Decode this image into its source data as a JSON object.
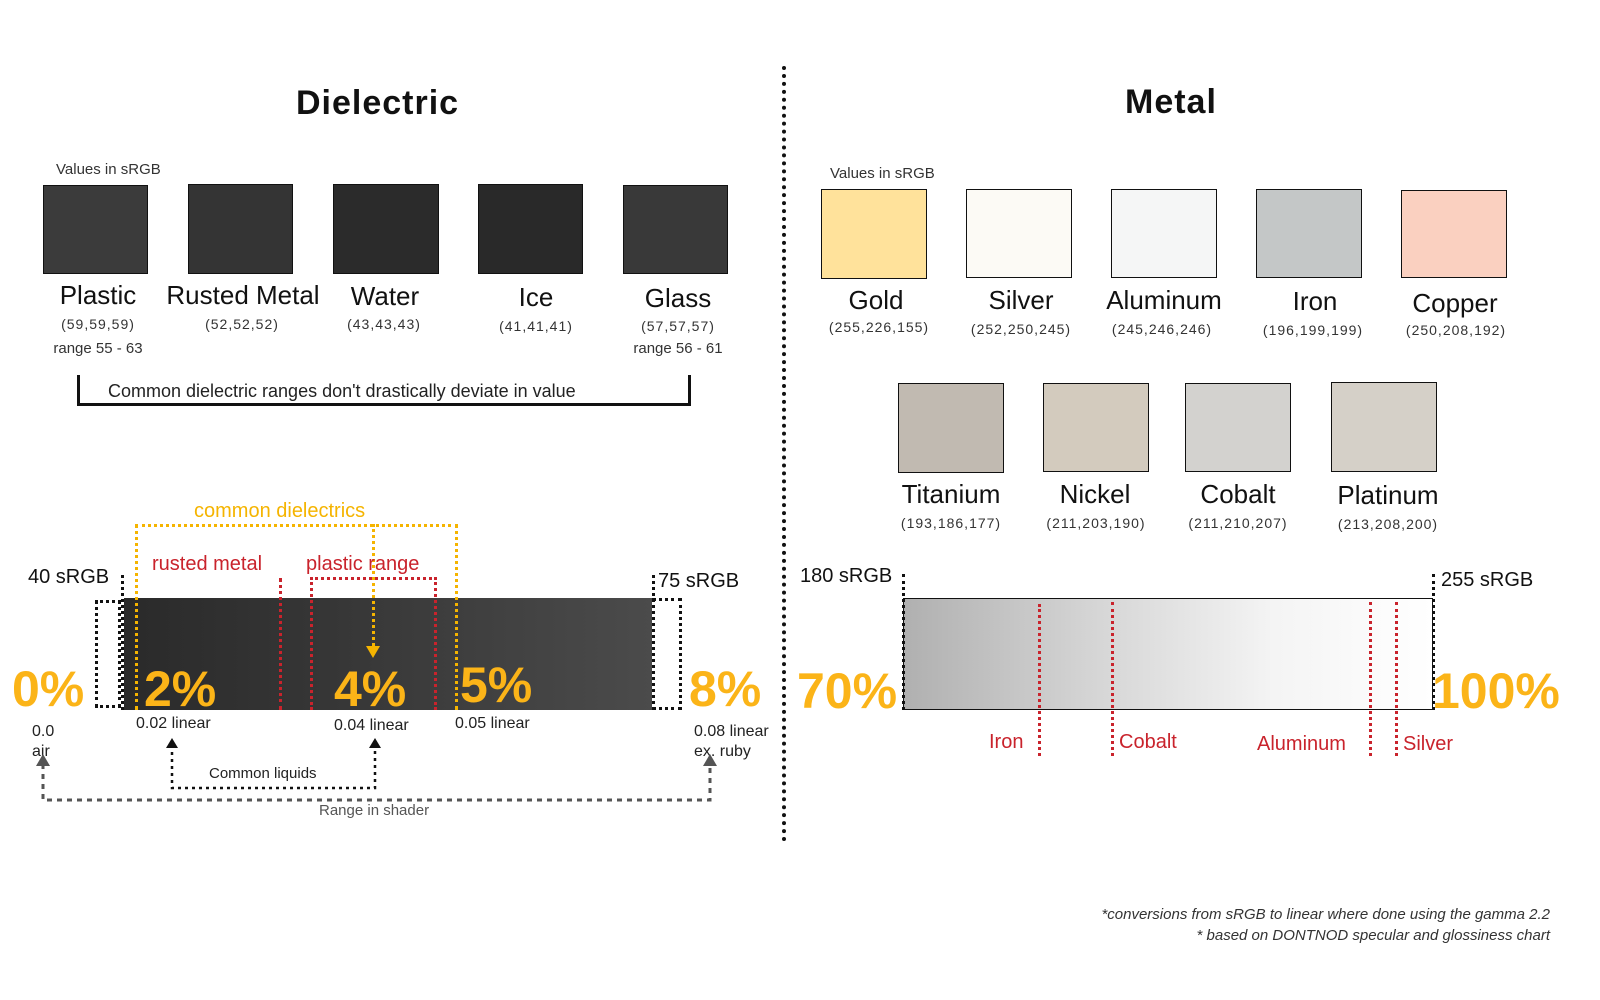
{
  "colors": {
    "accent_yellow": "#fbb418",
    "accent_red": "#c9232c",
    "ink": "#111111"
  },
  "dielectric": {
    "title": "Dielectric",
    "values_note": "Values in sRGB",
    "materials": [
      {
        "name": "Plastic",
        "value": "(59,59,59)",
        "range": "range 55 - 63",
        "color": "#3b3b3b"
      },
      {
        "name": "Rusted Metal",
        "value": "(52,52,52)",
        "range": "",
        "color": "#343434"
      },
      {
        "name": "Water",
        "value": "(43,43,43)",
        "range": "",
        "color": "#2b2b2b"
      },
      {
        "name": "Ice",
        "value": "(41,41,41)",
        "range": "",
        "color": "#292929"
      },
      {
        "name": "Glass",
        "value": "(57,57,57)",
        "range": "range 56 - 61",
        "color": "#393939"
      }
    ],
    "bracket_note": "Common dielectric ranges don't drastically deviate in value",
    "common_dielectrics": "common dielectrics",
    "rusted_metal_label": "rusted metal",
    "plastic_range_label": "plastic range",
    "left_srgb": "40 sRGB",
    "right_srgb": "75 sRGB",
    "pct": {
      "p0": "0%",
      "p2": "2%",
      "p4": "4%",
      "p5": "5%",
      "p8": "8%"
    },
    "linear": {
      "l0": "0.0",
      "l0_sub": "air",
      "l2": "0.02 linear",
      "l4": "0.04 linear",
      "l5": "0.05 linear",
      "l8": "0.08 linear",
      "l8_sub": "ex. ruby"
    },
    "common_liquids": "Common liquids",
    "range_in_shader": "Range in shader"
  },
  "metal": {
    "title": "Metal",
    "values_note": "Values in sRGB",
    "row1": [
      {
        "name": "Gold",
        "value": "(255,226,155)",
        "color": "#ffe29b"
      },
      {
        "name": "Silver",
        "value": "(252,250,245)",
        "color": "#fcfaf5"
      },
      {
        "name": "Aluminum",
        "value": "(245,246,246)",
        "color": "#f5f6f6"
      },
      {
        "name": "Iron",
        "value": "(196,199,199)",
        "color": "#c4c7c7"
      },
      {
        "name": "Copper",
        "value": "(250,208,192)",
        "color": "#fad0c0"
      }
    ],
    "row2": [
      {
        "name": "Titanium",
        "value": "(193,186,177)",
        "color": "#c1bab1"
      },
      {
        "name": "Nickel",
        "value": "(211,203,190)",
        "color": "#d3cbbe"
      },
      {
        "name": "Cobalt",
        "value": "(211,210,207)",
        "color": "#d3d2cf"
      },
      {
        "name": "Platinum",
        "value": "(213,208,200)",
        "color": "#d5d0c8"
      }
    ],
    "left_srgb": "180 sRGB",
    "right_srgb": "255 sRGB",
    "pct_left": "70%",
    "pct_right": "100%",
    "markers": {
      "iron": "Iron",
      "cobalt": "Cobalt",
      "aluminum": "Aluminum",
      "silver": "Silver"
    }
  },
  "footnotes": {
    "line1": "*conversions from sRGB to linear where done using the gamma 2.2",
    "line2": "* based on DONTNOD specular and glossiness chart"
  }
}
